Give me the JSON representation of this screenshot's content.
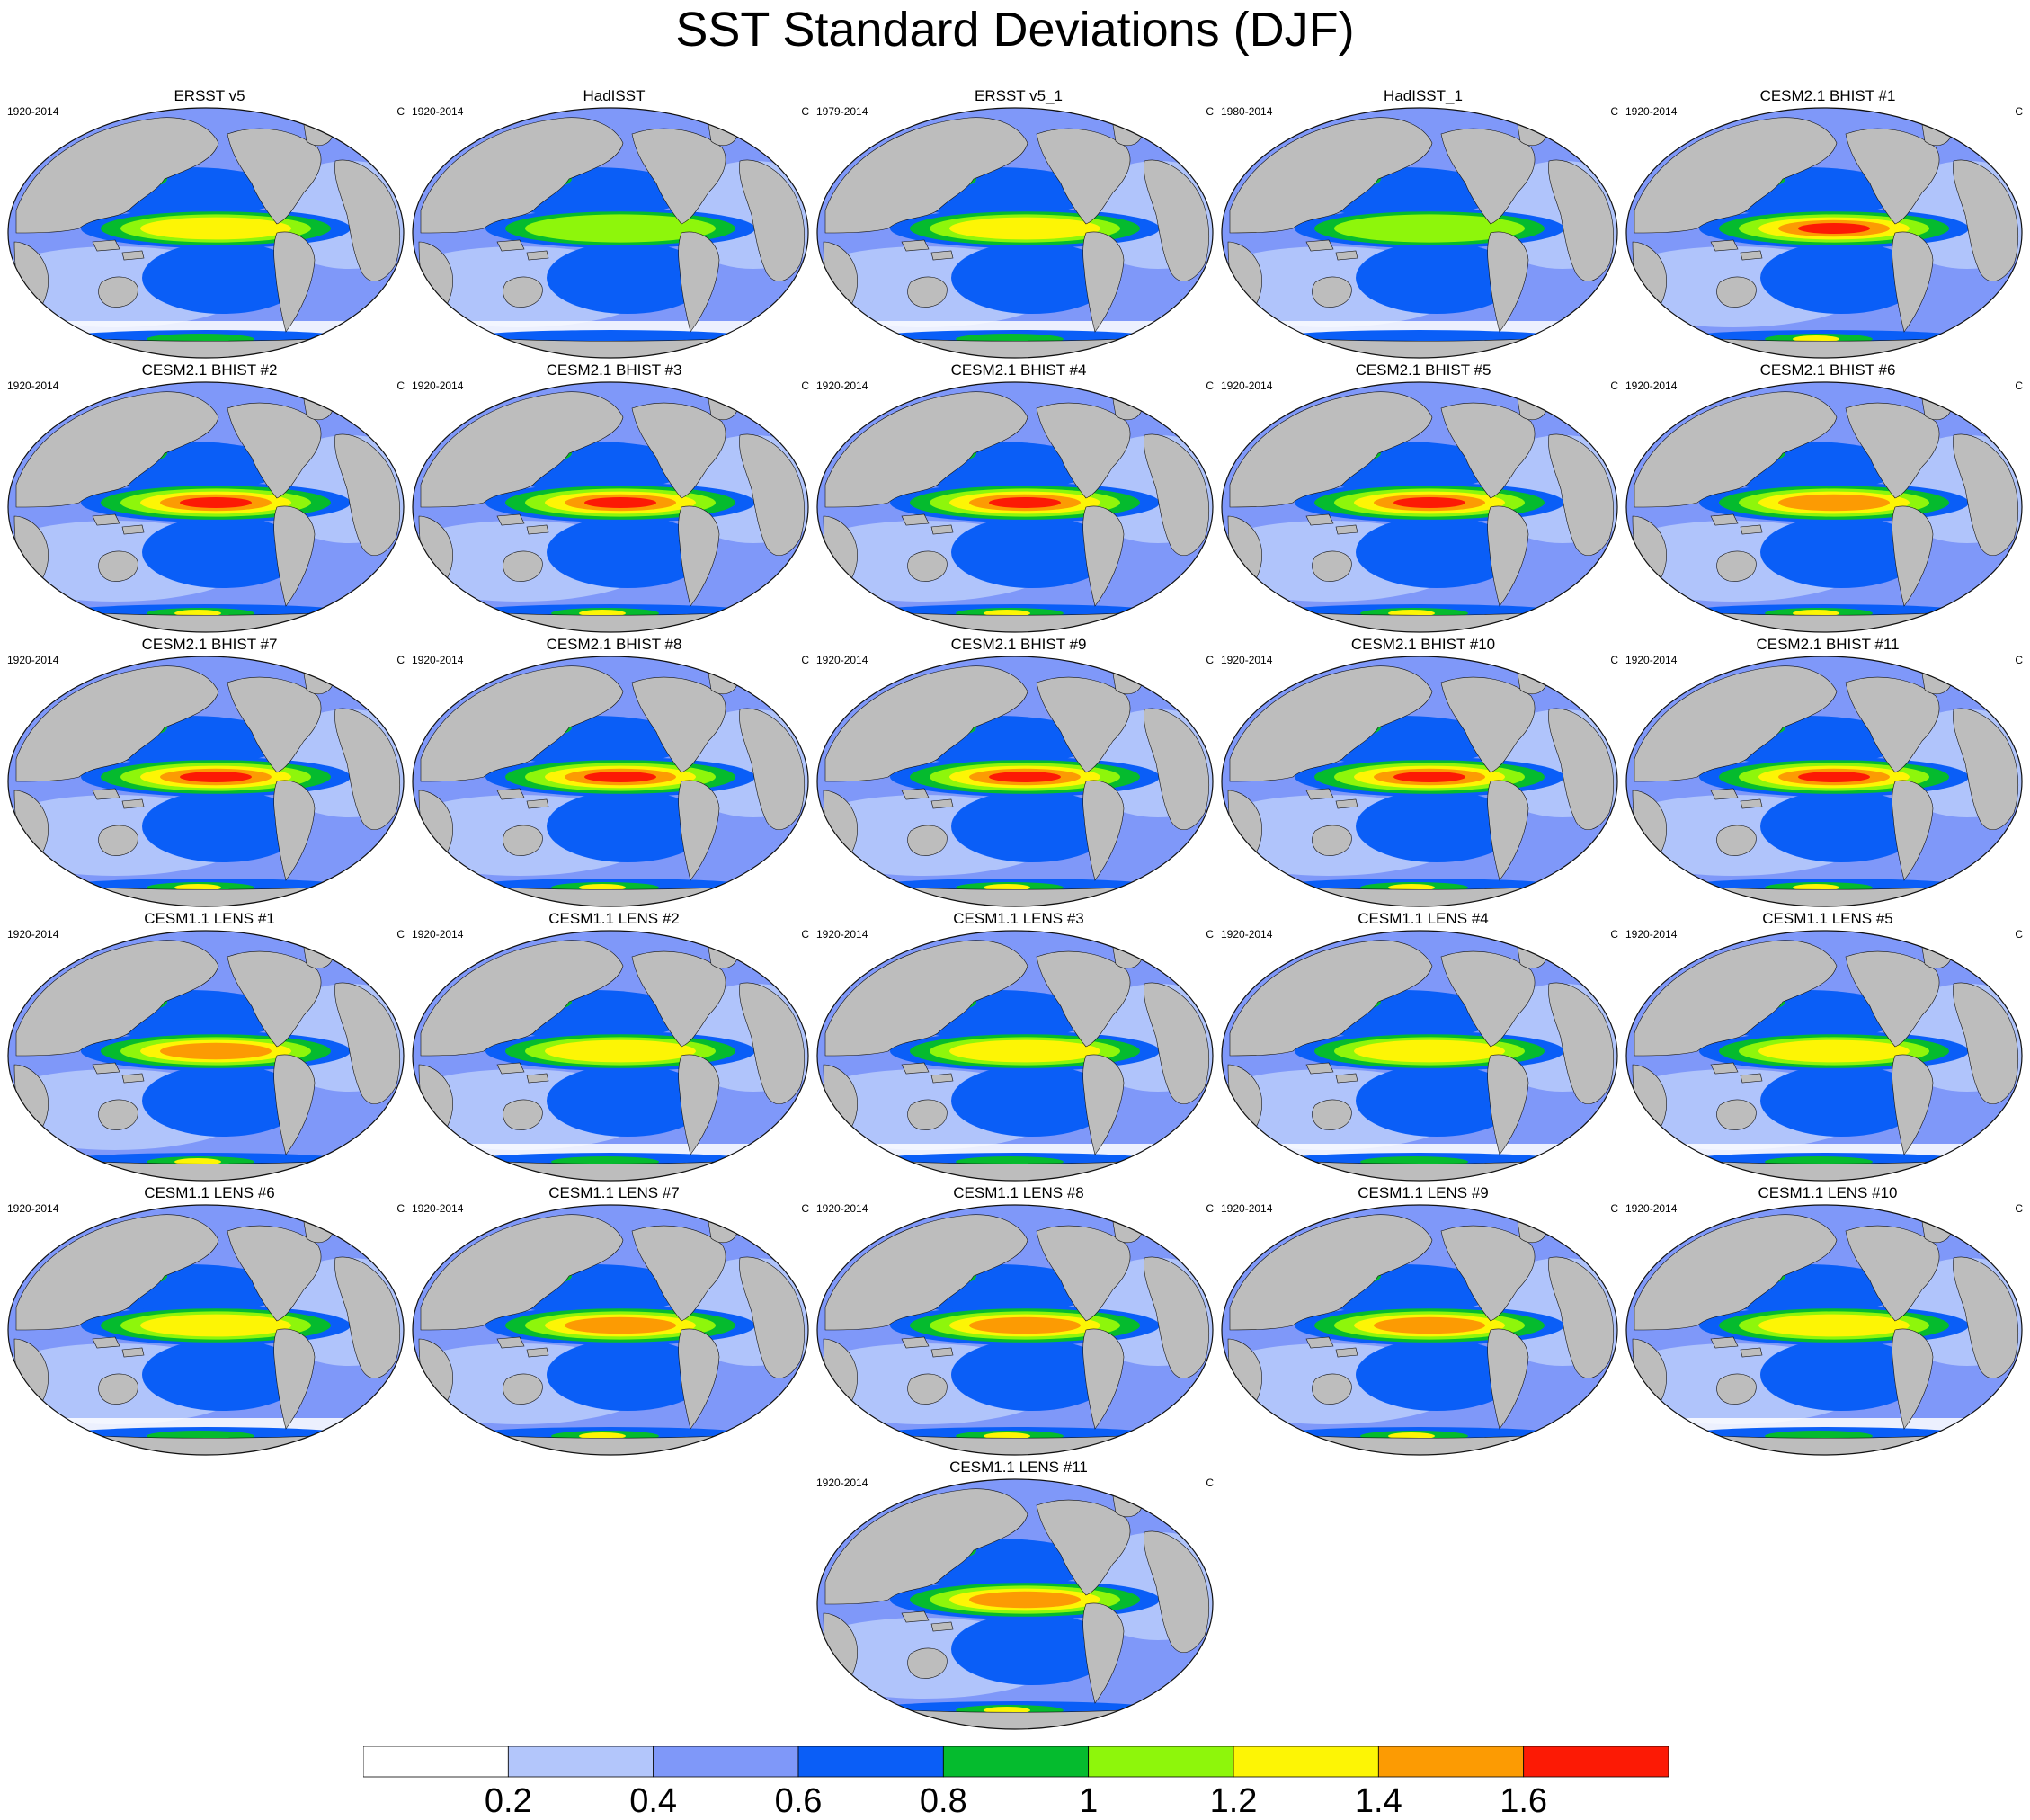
{
  "title": "SST Standard Deviations (DJF)",
  "units": "C",
  "colors": {
    "land": "#bdbdbd",
    "outline": "#111111"
  },
  "colorbar": {
    "levels": [
      "0.2",
      "0.4",
      "0.6",
      "0.8",
      "1",
      "1.2",
      "1.4",
      "1.6"
    ],
    "colors": [
      "#ffffff",
      "#b3c6fb",
      "#7f98f9",
      "#0a5ef7",
      "#05bb2e",
      "#8ef60b",
      "#fdf505",
      "#fc9b03",
      "#fc1a05"
    ]
  },
  "panels": [
    {
      "name": "ERSST v5",
      "range": "1920-2014",
      "intensity": 2
    },
    {
      "name": "HadISST",
      "range": "1920-2014",
      "intensity": 1
    },
    {
      "name": "ERSST v5_1",
      "range": "1979-2014",
      "intensity": 2
    },
    {
      "name": "HadISST_1",
      "range": "1980-2014",
      "intensity": 1
    },
    {
      "name": "CESM2.1 BHIST #1",
      "range": "1920-2014",
      "intensity": 4
    },
    {
      "name": "CESM2.1 BHIST #2",
      "range": "1920-2014",
      "intensity": 4
    },
    {
      "name": "CESM2.1 BHIST #3",
      "range": "1920-2014",
      "intensity": 4
    },
    {
      "name": "CESM2.1 BHIST #4",
      "range": "1920-2014",
      "intensity": 4
    },
    {
      "name": "CESM2.1 BHIST #5",
      "range": "1920-2014",
      "intensity": 4
    },
    {
      "name": "CESM2.1 BHIST #6",
      "range": "1920-2014",
      "intensity": 3
    },
    {
      "name": "CESM2.1 BHIST #7",
      "range": "1920-2014",
      "intensity": 4
    },
    {
      "name": "CESM2.1 BHIST #8",
      "range": "1920-2014",
      "intensity": 4
    },
    {
      "name": "CESM2.1 BHIST #9",
      "range": "1920-2014",
      "intensity": 4
    },
    {
      "name": "CESM2.1 BHIST #10",
      "range": "1920-2014",
      "intensity": 4
    },
    {
      "name": "CESM2.1 BHIST #11",
      "range": "1920-2014",
      "intensity": 4
    },
    {
      "name": "CESM1.1 LENS #1",
      "range": "1920-2014",
      "intensity": 3
    },
    {
      "name": "CESM1.1 LENS #2",
      "range": "1920-2014",
      "intensity": 2
    },
    {
      "name": "CESM1.1 LENS #3",
      "range": "1920-2014",
      "intensity": 2
    },
    {
      "name": "CESM1.1 LENS #4",
      "range": "1920-2014",
      "intensity": 2
    },
    {
      "name": "CESM1.1 LENS #5",
      "range": "1920-2014",
      "intensity": 2
    },
    {
      "name": "CESM1.1 LENS #6",
      "range": "1920-2014",
      "intensity": 2
    },
    {
      "name": "CESM1.1 LENS #7",
      "range": "1920-2014",
      "intensity": 3
    },
    {
      "name": "CESM1.1 LENS #8",
      "range": "1920-2014",
      "intensity": 3
    },
    {
      "name": "CESM1.1 LENS #9",
      "range": "1920-2014",
      "intensity": 3
    },
    {
      "name": "CESM1.1 LENS #10",
      "range": "1920-2014",
      "intensity": 2
    },
    {
      "name": "CESM1.1 LENS #11",
      "range": "1920-2014",
      "intensity": 3
    }
  ]
}
